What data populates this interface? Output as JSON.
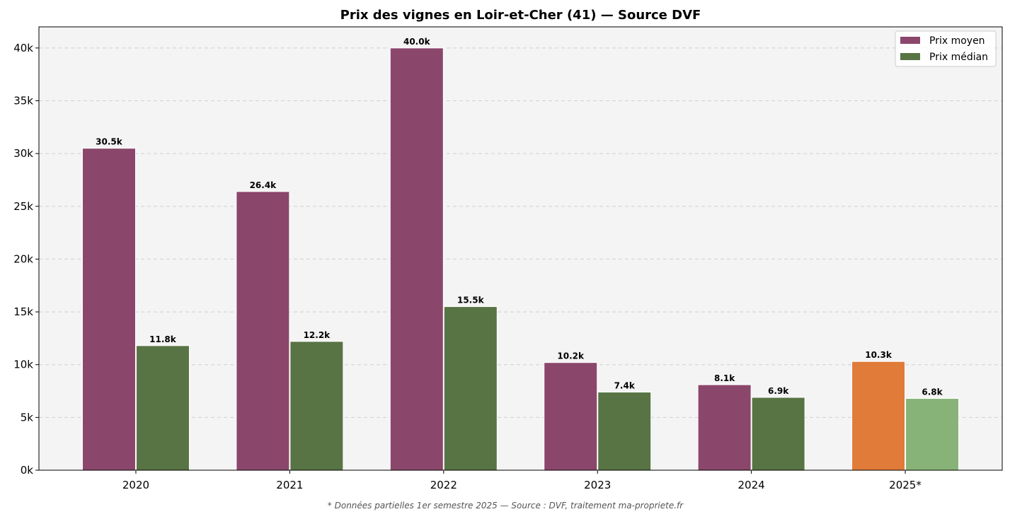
{
  "chart_data": {
    "type": "bar",
    "title": "Prix des vignes en Loir-et-Cher (41) — Source DVF",
    "footnote": "* Données partielles 1er semestre 2025 — Source : DVF, traitement ma-propriete.fr",
    "categories": [
      "2020",
      "2021",
      "2022",
      "2023",
      "2024",
      "2025*"
    ],
    "series": [
      {
        "name": "Prix moyen",
        "values": [
          30500,
          26400,
          40000,
          10200,
          8100,
          10300
        ],
        "labels": [
          "30.5k",
          "26.4k",
          "40.0k",
          "10.2k",
          "8.1k",
          "10.3k"
        ],
        "color": "#8B466B",
        "partial_color": "#E07B39"
      },
      {
        "name": "Prix médian",
        "values": [
          11800,
          12200,
          15500,
          7400,
          6900,
          6800
        ],
        "labels": [
          "11.8k",
          "12.2k",
          "15.5k",
          "7.4k",
          "6.9k",
          "6.8k"
        ],
        "color": "#587444",
        "partial_color": "#88B378"
      }
    ],
    "partial_category": "2025*",
    "ylim": [
      0,
      42000
    ],
    "yticks": [
      0,
      5000,
      10000,
      15000,
      20000,
      25000,
      30000,
      35000,
      40000
    ],
    "ytick_labels": [
      "0k",
      "5k",
      "10k",
      "15k",
      "20k",
      "25k",
      "30k",
      "35k",
      "40k"
    ],
    "grid": "y dashed",
    "legend": "top-right",
    "background": "#F4F4F4"
  }
}
